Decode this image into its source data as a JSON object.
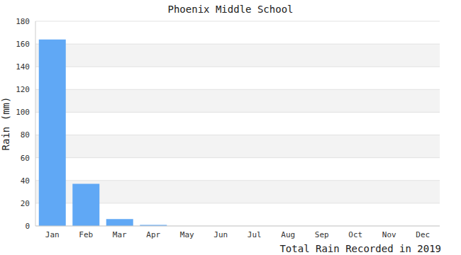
{
  "chart_data": {
    "type": "bar",
    "title": "Phoenix Middle School",
    "xlabel": "Total Rain Recorded in 2019",
    "ylabel": "Rain (mm)",
    "categories": [
      "Jan",
      "Feb",
      "Mar",
      "Apr",
      "May",
      "Jun",
      "Jul",
      "Aug",
      "Sep",
      "Oct",
      "Nov",
      "Dec"
    ],
    "values": [
      164,
      37,
      6,
      1,
      0,
      0,
      0,
      0,
      0,
      0,
      0,
      0
    ],
    "color": "#60a8f5",
    "ylim": [
      0,
      180
    ],
    "yticks": [
      0,
      20,
      40,
      60,
      80,
      100,
      120,
      140,
      160,
      180
    ],
    "grid": true
  }
}
